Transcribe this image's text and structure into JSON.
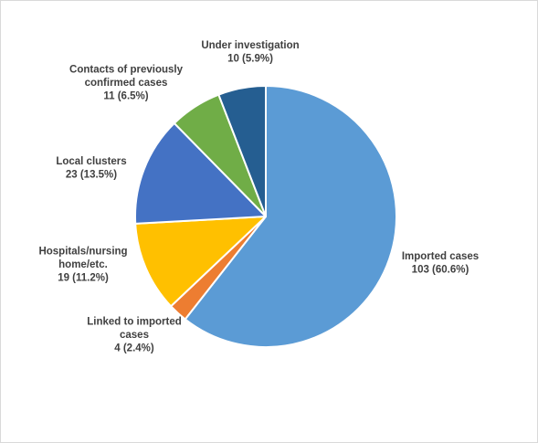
{
  "chart_data": {
    "type": "pie",
    "title": "",
    "legend": "none",
    "slices": [
      {
        "label_lines": [
          "Imported cases"
        ],
        "value": 103,
        "display": "103 (60.6%)",
        "color": "#5b9bd5"
      },
      {
        "label_lines": [
          "Linked to imported",
          "cases"
        ],
        "value": 4,
        "display": "4 (2.4%)",
        "color": "#ed7d31"
      },
      {
        "label_lines": [
          "Hospitals/nursing",
          "home/etc."
        ],
        "value": 19,
        "display": "19 (11.2%)",
        "color": "#ffc000"
      },
      {
        "label_lines": [
          "Local clusters"
        ],
        "value": 23,
        "display": "23 (13.5%)",
        "color": "#4472c4"
      },
      {
        "label_lines": [
          "Contacts of previously",
          "confirmed cases"
        ],
        "value": 11,
        "display": "11 (6.5%)",
        "color": "#70ad47"
      },
      {
        "label_lines": [
          "Under investigation"
        ],
        "value": 10,
        "display": "10 (5.9%)",
        "color": "#255e91"
      }
    ]
  }
}
